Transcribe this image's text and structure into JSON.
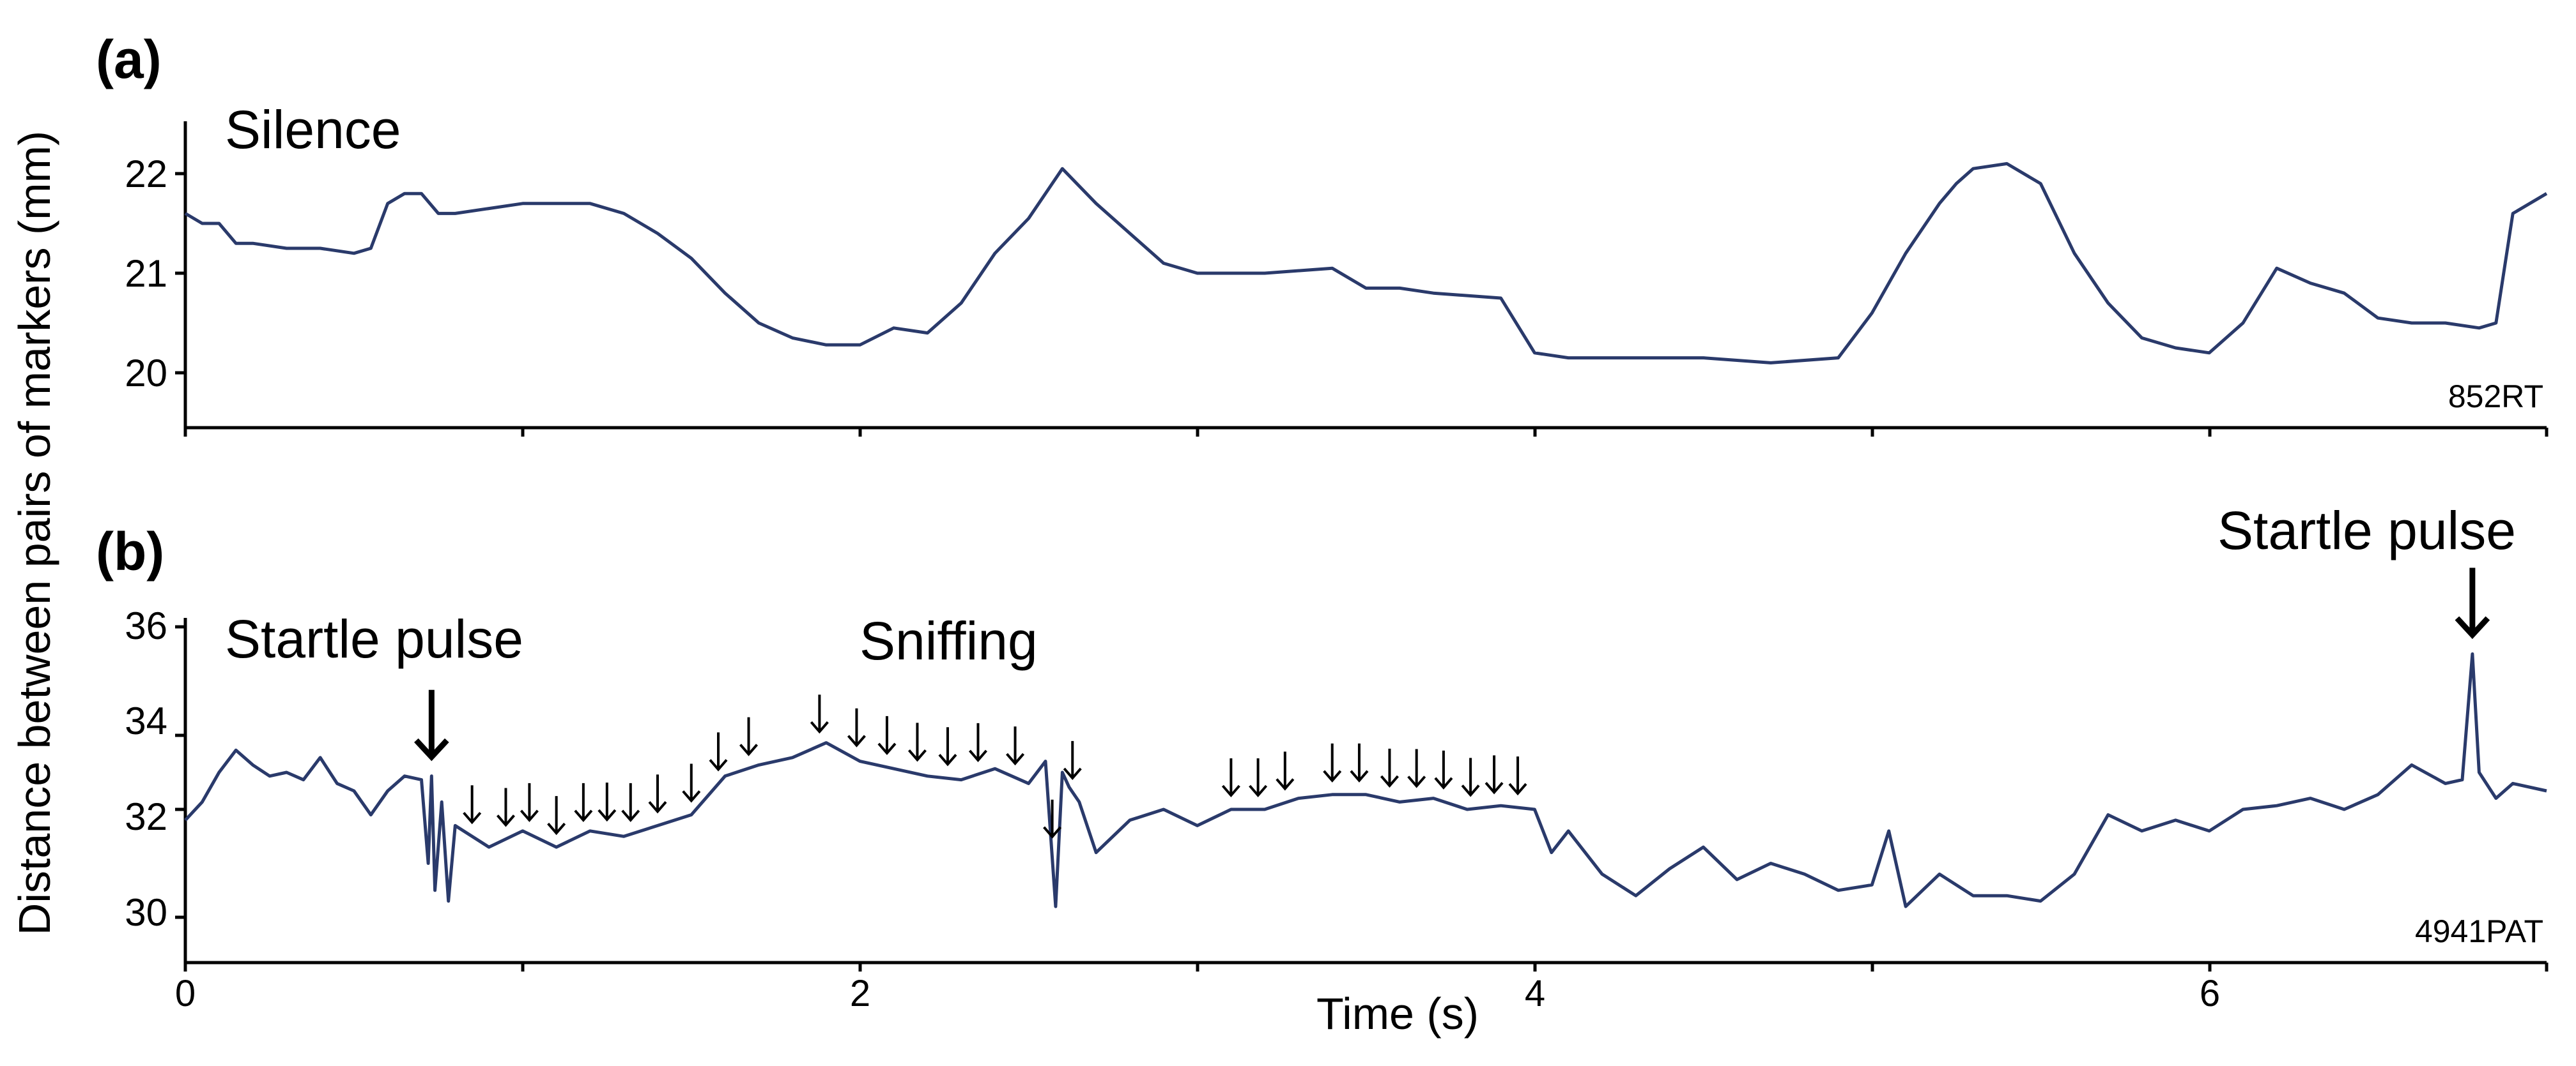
{
  "y_axis_title": "Distance between pairs of markers (mm)",
  "x_axis_title": "Time (s)",
  "x_tick_labels": [
    "0",
    "2",
    "4",
    "6"
  ],
  "colors": {
    "trace": "#2a3a6b",
    "axis": "#000000"
  },
  "chart_data": [
    {
      "type": "line",
      "panel_label": "(a)",
      "annotation": "Silence",
      "id_label": "852RT",
      "xlim": [
        0,
        7
      ],
      "ylim": [
        19.5,
        22.5
      ],
      "y_ticks": [
        20,
        21,
        22
      ],
      "y_tick_labels": [
        "22",
        "21",
        "20"
      ],
      "x_ticks": [
        0,
        1,
        2,
        3,
        4,
        5,
        6,
        7
      ],
      "series": [
        {
          "x": [
            0,
            0.05,
            0.1,
            0.15,
            0.2,
            0.3,
            0.4,
            0.5,
            0.55,
            0.6,
            0.65,
            0.7,
            0.75,
            0.8,
            0.9,
            1.0,
            1.2,
            1.3,
            1.4,
            1.5,
            1.6,
            1.7,
            1.8,
            1.9,
            2.0,
            2.1,
            2.2,
            2.3,
            2.4,
            2.5,
            2.6,
            2.7,
            2.8,
            2.9,
            3.0,
            3.2,
            3.4,
            3.5,
            3.6,
            3.7,
            3.9,
            4.0,
            4.1,
            4.3,
            4.5,
            4.7,
            4.9,
            5.0,
            5.1,
            5.2,
            5.25,
            5.3,
            5.4,
            5.5,
            5.6,
            5.7,
            5.8,
            5.9,
            6.0,
            6.1,
            6.2,
            6.3,
            6.4,
            6.5,
            6.6,
            6.7,
            6.8,
            6.85,
            6.9,
            7.0
          ],
          "y": [
            21.6,
            21.5,
            21.5,
            21.3,
            21.3,
            21.25,
            21.25,
            21.2,
            21.25,
            21.7,
            21.8,
            21.8,
            21.6,
            21.6,
            21.65,
            21.7,
            21.7,
            21.6,
            21.4,
            21.15,
            20.8,
            20.5,
            20.35,
            20.28,
            20.28,
            20.45,
            20.4,
            20.7,
            21.2,
            21.55,
            22.05,
            21.7,
            21.4,
            21.1,
            21.0,
            21.0,
            21.05,
            20.85,
            20.85,
            20.8,
            20.75,
            20.2,
            20.15,
            20.15,
            20.15,
            20.1,
            20.15,
            20.6,
            21.2,
            21.7,
            21.9,
            22.05,
            22.1,
            21.9,
            21.2,
            20.7,
            20.35,
            20.25,
            20.2,
            20.5,
            21.05,
            20.9,
            20.8,
            20.55,
            20.5,
            20.5,
            20.45,
            20.5,
            21.6,
            21.8
          ]
        }
      ]
    },
    {
      "type": "line",
      "panel_label": "(b)",
      "annotations": [
        "Startle pulse",
        "Sniffing",
        "Startle pulse"
      ],
      "id_label": "4941PAT",
      "xlim": [
        0,
        7
      ],
      "ylim": [
        29.2,
        36.0
      ],
      "y_ticks": [
        30,
        32,
        34,
        36
      ],
      "y_tick_labels": [
        "36",
        "34",
        "32",
        "30"
      ],
      "x_ticks": [
        0,
        1,
        2,
        3,
        4,
        5,
        6,
        7
      ],
      "startle_arrow_times": [
        0.73,
        6.78
      ],
      "sniff_arrow_times": [
        0.85,
        0.95,
        1.02,
        1.1,
        1.18,
        1.25,
        1.32,
        1.4,
        1.5,
        1.58,
        1.67,
        1.88,
        1.99,
        2.08,
        2.17,
        2.26,
        2.35,
        2.46,
        2.57,
        2.63,
        3.1,
        3.18,
        3.26,
        3.4,
        3.48,
        3.57,
        3.65,
        3.73,
        3.81,
        3.88,
        3.95
      ],
      "series": [
        {
          "x": [
            0,
            0.05,
            0.1,
            0.15,
            0.2,
            0.25,
            0.3,
            0.35,
            0.4,
            0.45,
            0.5,
            0.55,
            0.6,
            0.65,
            0.7,
            0.72,
            0.73,
            0.74,
            0.76,
            0.78,
            0.8,
            0.9,
            1.0,
            1.1,
            1.2,
            1.3,
            1.4,
            1.5,
            1.6,
            1.7,
            1.8,
            1.9,
            2.0,
            2.1,
            2.2,
            2.3,
            2.4,
            2.5,
            2.55,
            2.58,
            2.6,
            2.62,
            2.65,
            2.7,
            2.8,
            2.9,
            3.0,
            3.1,
            3.2,
            3.3,
            3.4,
            3.5,
            3.6,
            3.7,
            3.8,
            3.9,
            4.0,
            4.05,
            4.1,
            4.2,
            4.3,
            4.4,
            4.5,
            4.6,
            4.7,
            4.8,
            4.9,
            5.0,
            5.05,
            5.1,
            5.2,
            5.3,
            5.4,
            5.5,
            5.6,
            5.7,
            5.8,
            5.9,
            6.0,
            6.1,
            6.2,
            6.3,
            6.4,
            6.5,
            6.6,
            6.7,
            6.75,
            6.78,
            6.8,
            6.85,
            6.9,
            7.0
          ],
          "y": [
            31.8,
            32.2,
            33.0,
            33.6,
            33.2,
            32.9,
            33.0,
            32.8,
            33.4,
            32.7,
            32.5,
            31.9,
            32.5,
            32.9,
            32.8,
            31.0,
            32.9,
            30.5,
            32.2,
            30.3,
            31.7,
            31.3,
            31.6,
            31.3,
            31.6,
            31.5,
            31.7,
            31.9,
            32.9,
            33.2,
            33.4,
            33.8,
            33.3,
            33.1,
            32.9,
            32.8,
            33.1,
            32.7,
            33.3,
            30.2,
            33.0,
            32.6,
            32.2,
            31.2,
            31.8,
            32.0,
            31.7,
            32.0,
            32.0,
            32.3,
            32.4,
            32.4,
            32.2,
            32.3,
            32.0,
            32.1,
            32.0,
            31.2,
            31.6,
            30.8,
            30.4,
            30.9,
            31.3,
            30.7,
            31.0,
            30.8,
            30.5,
            30.6,
            31.6,
            30.2,
            30.8,
            30.4,
            30.4,
            30.3,
            30.8,
            31.9,
            31.6,
            31.8,
            31.6,
            32.0,
            32.1,
            32.3,
            32.0,
            32.4,
            33.2,
            32.7,
            32.8,
            35.5,
            33.0,
            32.3,
            32.7,
            32.5
          ]
        }
      ]
    }
  ]
}
